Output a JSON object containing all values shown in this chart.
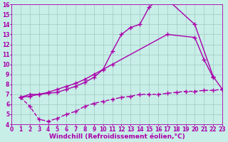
{
  "bg_color": "#c8eee8",
  "grid_color": "#a0c8c0",
  "line_color": "#aa00aa",
  "line_width": 1.0,
  "marker": "+",
  "markersize": 4,
  "xlabel": "Windchill (Refroidissement éolien,°C)",
  "xlabel_fontsize": 6.5,
  "xlim": [
    0,
    23
  ],
  "ylim": [
    4,
    16
  ],
  "xticks": [
    0,
    1,
    2,
    3,
    4,
    5,
    6,
    7,
    8,
    9,
    10,
    11,
    12,
    13,
    14,
    15,
    16,
    17,
    18,
    19,
    20,
    21,
    22,
    23
  ],
  "yticks": [
    4,
    5,
    6,
    7,
    8,
    9,
    10,
    11,
    12,
    13,
    14,
    15,
    16
  ],
  "tick_fontsize": 5.5,
  "line1_x": [
    1,
    2,
    3,
    4,
    5,
    6,
    7,
    8,
    9,
    10,
    11,
    12,
    13,
    14,
    15,
    16,
    17,
    20,
    22,
    23
  ],
  "line1_y": [
    6.7,
    7.0,
    7.0,
    7.1,
    7.2,
    7.5,
    7.8,
    8.2,
    8.7,
    9.5,
    11.3,
    13.0,
    13.7,
    14.0,
    15.7,
    16.5,
    16.5,
    14.0,
    8.8,
    7.5
  ],
  "line2_x": [
    1,
    2,
    3,
    4,
    5,
    6,
    7,
    8,
    9,
    10,
    11,
    17,
    20,
    21,
    22
  ],
  "line2_y": [
    6.7,
    6.8,
    7.0,
    7.2,
    7.5,
    7.8,
    8.1,
    8.5,
    9.0,
    9.5,
    10.0,
    13.0,
    12.7,
    10.5,
    8.7
  ],
  "line3_x": [
    1,
    2,
    3,
    4,
    5,
    6,
    7,
    8,
    9,
    10,
    11,
    12,
    13,
    14,
    15,
    16,
    17,
    18,
    19,
    20,
    21,
    22,
    23
  ],
  "line3_y": [
    6.7,
    5.8,
    4.5,
    4.3,
    4.6,
    5.0,
    5.3,
    5.8,
    6.1,
    6.3,
    6.5,
    6.7,
    6.8,
    7.0,
    7.0,
    7.0,
    7.1,
    7.2,
    7.3,
    7.3,
    7.4,
    7.4,
    7.5
  ]
}
